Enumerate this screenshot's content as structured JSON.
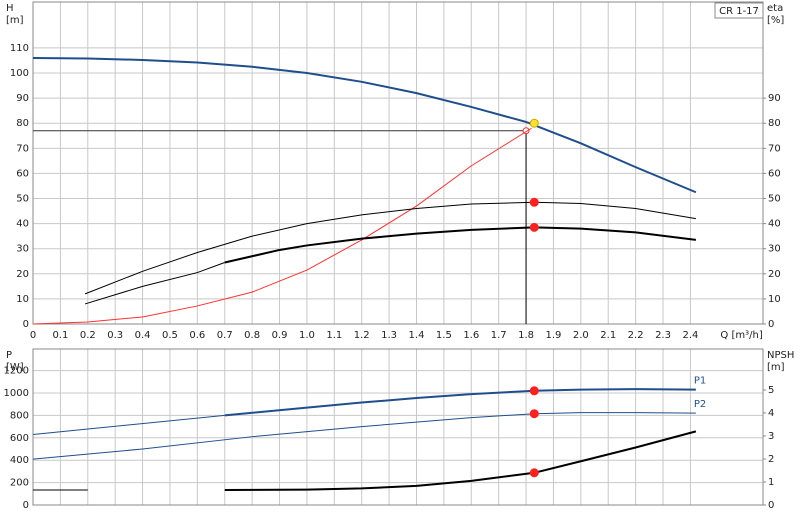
{
  "chart_data": [
    {
      "type": "line",
      "label": "CR 1-17",
      "xlabel": "Q [m³/h]",
      "ylabel": "H",
      "ylabel_unit": "[m]",
      "y2label": "eta",
      "y2label_unit": "[%]",
      "xlim": [
        0,
        2.665
      ],
      "ylim": [
        0,
        128.3
      ],
      "y2lim": [
        0,
        128.3
      ],
      "xticks": [
        0,
        0.1,
        0.2,
        0.3,
        0.4,
        0.5,
        0.6,
        0.7,
        0.8,
        0.9,
        {
          "value": 1,
          "label": "1.0"
        },
        1.1,
        1.2,
        1.3,
        1.4,
        1.5,
        1.6,
        1.7,
        1.8,
        1.9,
        {
          "value": 2,
          "label": "2.0"
        },
        2.1,
        2.2,
        2.3,
        2.4
      ],
      "yticks": [
        0,
        10,
        20,
        30,
        40,
        50,
        60,
        70,
        80,
        90,
        100,
        110
      ],
      "y2ticks": [
        0,
        10,
        20,
        30,
        40,
        50,
        60,
        70,
        80,
        90
      ],
      "grid": true,
      "series": [
        {
          "color": "#1f4e8c",
          "width": 2,
          "x": [
            0,
            0.2,
            0.4,
            0.6,
            0.8,
            1.0,
            1.2,
            1.4,
            1.6,
            1.8,
            2.0,
            2.2,
            2.42
          ],
          "values": [
            106,
            105.8,
            105.2,
            104.2,
            102.5,
            100,
            96.5,
            92,
            86.5,
            80.5,
            72,
            62.5,
            52.5
          ]
        },
        {
          "color": "#ff3030",
          "width": 1,
          "axis": "y2",
          "x": [
            0,
            0.2,
            0.4,
            0.6,
            0.8,
            1.0,
            1.2,
            1.4,
            1.6,
            1.82
          ],
          "values": [
            0,
            0.8,
            2.8,
            7.2,
            12.7,
            21.5,
            33.5,
            47,
            63,
            78
          ]
        },
        {
          "color": "#000000",
          "width": 1,
          "axis": "y2",
          "x": [
            0.19,
            0.4,
            0.6,
            0.8,
            1.0,
            1.2,
            1.4,
            1.6,
            1.83,
            2.0,
            2.2,
            2.42
          ],
          "values": [
            12,
            21,
            28.5,
            35,
            40,
            43.5,
            46,
            47.8,
            48.5,
            48,
            46,
            42
          ]
        },
        {
          "color": "#000000",
          "width": 1,
          "axis": "y2",
          "x": [
            0.19,
            0.4,
            0.6,
            0.7
          ],
          "values": [
            8,
            15,
            20.5,
            24.5
          ]
        },
        {
          "color": "#000000",
          "width": 2,
          "axis": "y2",
          "x": [
            0.7,
            0.9,
            1.0,
            1.2,
            1.4,
            1.6,
            1.83,
            2.0,
            2.2,
            2.42
          ],
          "values": [
            24.5,
            29.5,
            31.3,
            34,
            36,
            37.5,
            38.5,
            38,
            36.5,
            33.5
          ]
        }
      ],
      "crosshair": {
        "x": 1.8,
        "y": 77
      },
      "markers": [
        {
          "x": 1.83,
          "y": 80,
          "color": "#ffe030"
        },
        {
          "x": 1.83,
          "y": 48.5,
          "color": "#ff2020",
          "axis": "y2"
        },
        {
          "x": 1.83,
          "y": 38.5,
          "color": "#ff2020",
          "axis": "y2"
        }
      ]
    },
    {
      "type": "line",
      "ylabel": "P",
      "ylabel_unit": "[W]",
      "y2label": "NPSH",
      "y2label_unit": "[m]",
      "xlim": [
        0,
        2.665
      ],
      "ylim": [
        0,
        1393
      ],
      "y2lim": [
        0,
        6.78
      ],
      "xticks": [
        0,
        0.1,
        0.2,
        0.3,
        0.4,
        0.5,
        0.6,
        0.7,
        0.8,
        0.9,
        1,
        1.1,
        1.2,
        1.3,
        1.4,
        1.5,
        1.6,
        1.7,
        1.8,
        1.9,
        2,
        2.1,
        2.2,
        2.3,
        2.4
      ],
      "xtick_labels": false,
      "yticks": [
        0,
        200,
        400,
        600,
        800,
        1000,
        1200
      ],
      "y2ticks": [
        0,
        1,
        2,
        3,
        4,
        5
      ],
      "grid": true,
      "series": [
        {
          "color": "#1f4e8c",
          "width": 1,
          "x": [
            0,
            0.7
          ],
          "values": [
            630,
            800
          ]
        },
        {
          "name": "P1",
          "color": "#1f4e8c",
          "width": 2,
          "x": [
            0.7,
            1.0,
            1.2,
            1.4,
            1.6,
            1.83,
            2.0,
            2.2,
            2.42
          ],
          "values": [
            800,
            870,
            915,
            955,
            990,
            1020,
            1030,
            1035,
            1030
          ]
        },
        {
          "name": "P2",
          "color": "#1f4e8c",
          "width": 1,
          "x": [
            0,
            0.4,
            0.8,
            1.2,
            1.6,
            1.83,
            2.0,
            2.2,
            2.42
          ],
          "values": [
            410,
            500,
            610,
            700,
            780,
            815,
            825,
            825,
            820
          ]
        },
        {
          "color": "#000000",
          "width": 1,
          "axis": "y2",
          "x": [
            0,
            0.2
          ],
          "values": [
            0.65,
            0.65
          ]
        },
        {
          "color": "#000000",
          "width": 2,
          "axis": "y2",
          "x": [
            0.7,
            1.0,
            1.2,
            1.4,
            1.6,
            1.83,
            2.0,
            2.2,
            2.42
          ],
          "values": [
            0.65,
            0.67,
            0.72,
            0.83,
            1.05,
            1.4,
            1.9,
            2.5,
            3.2
          ]
        }
      ],
      "markers": [
        {
          "x": 1.83,
          "y": 1020,
          "color": "#ff2020"
        },
        {
          "x": 1.83,
          "y": 815,
          "color": "#ff2020"
        },
        {
          "x": 1.83,
          "y": 1.4,
          "color": "#ff2020",
          "axis": "y2"
        }
      ]
    }
  ]
}
